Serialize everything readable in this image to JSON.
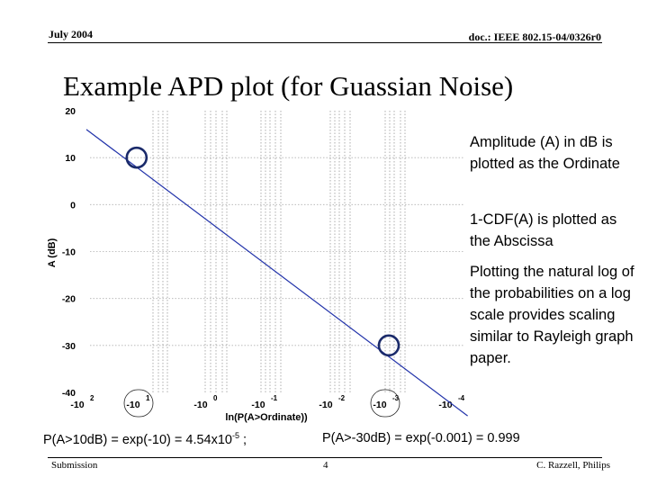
{
  "header": {
    "date": "July 2004",
    "doc_id": "doc.: IEEE 802.15-04/0326r0"
  },
  "slide_title": "Example APD plot (for Guassian Noise)",
  "bullets": [
    "Amplitude (A) in dB is plotted as the Ordinate",
    "1-CDF(A) is plotted as the Abscissa",
    "Plotting the natural log of the probabilities on a log scale provides scaling similar to Rayleigh graph paper."
  ],
  "notes": {
    "left": {
      "pre": "P(A>10dB) = exp(-10) = 4.54x10",
      "sup": "-5",
      "post": " ;"
    },
    "right": "P(A>-30dB) = exp(-0.001) = 0.999"
  },
  "footer": {
    "left": "Submission",
    "page": "4",
    "author": "C. Razzell, Philips"
  },
  "chart_data": {
    "type": "line",
    "xlabel": "ln(P(A>Ordinate))",
    "ylabel": "A (dB)",
    "ylim": [
      -40,
      20
    ],
    "y_ticks": [
      "20",
      "10",
      "0",
      "-10",
      "-20",
      "-30",
      "-40"
    ],
    "x_ticks": [
      {
        "base": "-10",
        "exp": "2"
      },
      {
        "base": "-10",
        "exp": "1"
      },
      {
        "base": "-10",
        "exp": "0"
      },
      {
        "base": "-10",
        "exp": "-1"
      },
      {
        "base": "-10",
        "exp": "-2"
      },
      {
        "base": "-10",
        "exp": "-3"
      },
      {
        "base": "-10",
        "exp": "-4"
      }
    ],
    "x_scale": "log of -ln(P), decreasing left to right",
    "series": [
      {
        "values": [
          [
            2,
            16
          ],
          [
            -4.2,
            -45
          ]
        ]
      }
    ],
    "highlight_points": [
      [
        1.1,
        10
      ],
      [
        -3.0,
        -30
      ]
    ],
    "grid": true,
    "line_color": "#2233aa"
  }
}
